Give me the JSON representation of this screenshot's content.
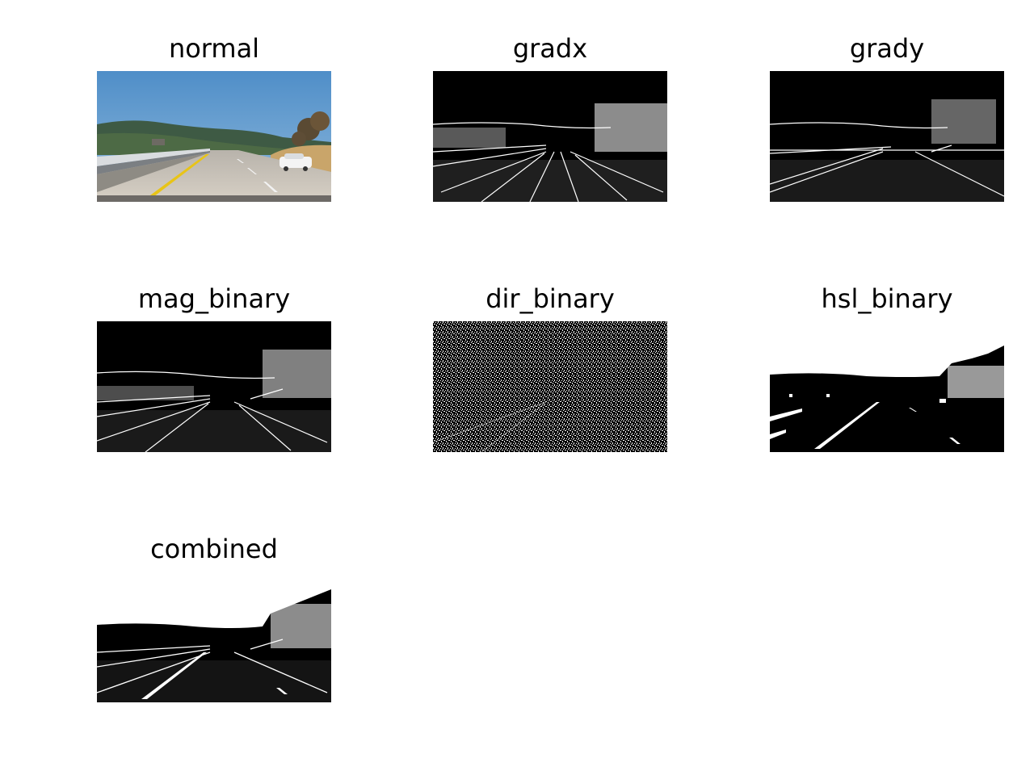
{
  "panels": [
    {
      "title": "normal",
      "kind": "photo"
    },
    {
      "title": "gradx",
      "kind": "binary-edges"
    },
    {
      "title": "grady",
      "kind": "binary-edges"
    },
    {
      "title": "mag_binary",
      "kind": "binary-edges"
    },
    {
      "title": "dir_binary",
      "kind": "binary-noise"
    },
    {
      "title": "hsl_binary",
      "kind": "binary-threshold"
    },
    {
      "title": "combined",
      "kind": "binary-threshold"
    }
  ],
  "colors": {
    "background": "#ffffff",
    "binary_on": "#ffffff",
    "binary_off": "#000000",
    "sky": "#5b93c4",
    "road": "#c9c3b8",
    "lane_yellow": "#e8c417"
  }
}
